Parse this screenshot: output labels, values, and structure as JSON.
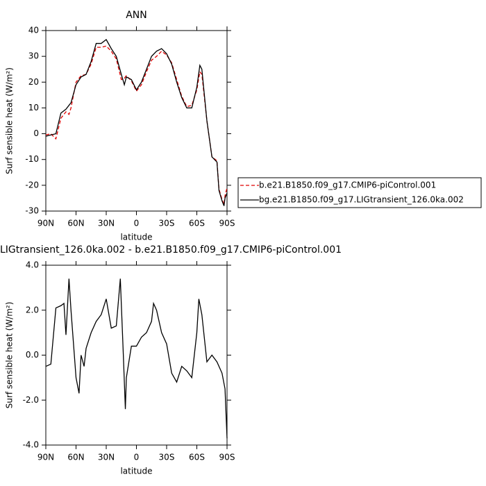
{
  "chart_data": [
    {
      "type": "line",
      "title": "ANN",
      "x_label": "latitude",
      "y_label": "Surf sensible heat (W/m²)",
      "x": [
        90,
        85,
        80,
        75,
        70,
        67,
        65,
        60,
        55,
        50,
        45,
        40,
        35,
        30,
        25,
        20,
        15,
        12,
        10,
        5,
        0,
        -5,
        -10,
        -15,
        -20,
        -25,
        -30,
        -35,
        -40,
        -45,
        -50,
        -55,
        -60,
        -63,
        -65,
        -70,
        -75,
        -80,
        -82,
        -85,
        -87,
        -88,
        -90
      ],
      "series": [
        {
          "name": "b.e21.B1850.f09_g17.CMIP6-piControl.001",
          "color": "#e00000",
          "line_style": "dashed",
          "values": [
            -0.5,
            0,
            -2,
            6,
            8.5,
            7.5,
            10,
            20,
            22.5,
            23,
            27,
            33.5,
            33.5,
            34,
            32,
            29,
            21,
            21.5,
            22.5,
            20.5,
            16.5,
            19,
            24,
            28.5,
            30,
            32,
            30.5,
            27.5,
            21,
            14.5,
            10.5,
            11,
            17,
            24,
            23,
            5,
            -9,
            -10.5,
            -21.5,
            -25.5,
            -27.5,
            -24,
            -21
          ]
        },
        {
          "name": "bg.e21.B1850.f09_g17.LIGtransient_126.0ka.002",
          "color": "#000000",
          "line_style": "solid",
          "values": [
            -1,
            -0.5,
            0,
            8,
            9.5,
            11,
            12,
            19,
            22,
            23,
            28,
            35,
            35,
            36.5,
            33,
            30,
            23,
            19,
            22,
            21,
            17,
            20,
            25,
            30,
            32,
            33,
            31,
            27,
            20,
            14,
            10,
            10,
            18,
            26.5,
            25,
            5,
            -9,
            -11,
            -22,
            -26,
            -28,
            -25,
            -23
          ]
        }
      ],
      "xlim": [
        90,
        -90
      ],
      "xticks": [
        {
          "value": 90,
          "label": "90N"
        },
        {
          "value": 60,
          "label": "60N"
        },
        {
          "value": 30,
          "label": "30N"
        },
        0,
        {
          "value": -30,
          "label": "30S"
        },
        {
          "value": -60,
          "label": "60S"
        },
        {
          "value": -90,
          "label": "90S"
        }
      ],
      "ylim": [
        -30,
        40
      ],
      "yticks": [
        -30,
        -20,
        -10,
        0,
        10,
        20,
        30,
        40
      ],
      "legend": "right"
    },
    {
      "type": "line",
      "title": "LIGtransient_126.0ka.002 - b.e21.B1850.f09_g17.CMIP6-piControl.001",
      "x_label": "latitude",
      "y_label": "Surf sensible heat (W/m²)",
      "x": [
        90,
        85,
        80,
        75,
        72,
        70,
        67,
        65,
        60,
        57,
        55,
        52,
        50,
        45,
        40,
        35,
        30,
        25,
        20,
        16,
        13,
        11,
        10,
        5,
        0,
        -5,
        -10,
        -15,
        -17,
        -20,
        -25,
        -30,
        -35,
        -40,
        -45,
        -50,
        -55,
        -60,
        -62,
        -65,
        -70,
        -75,
        -80,
        -85,
        -88,
        -90
      ],
      "values": [
        -0.5,
        -0.4,
        2.1,
        2.2,
        2.3,
        0.9,
        3.4,
        2.0,
        -1.0,
        -1.7,
        0,
        -0.5,
        0.3,
        1.0,
        1.5,
        1.8,
        2.5,
        1.2,
        1.3,
        3.4,
        0,
        -2.4,
        -1.0,
        0.4,
        0.4,
        0.8,
        1.0,
        1.5,
        2.3,
        2.0,
        1.0,
        0.5,
        -0.8,
        -1.2,
        -0.5,
        -0.7,
        -1.0,
        1.0,
        2.5,
        1.8,
        -0.3,
        0,
        -0.3,
        -0.8,
        -1.5,
        -3.7
      ],
      "color": "#000000",
      "xlim": [
        90,
        -90
      ],
      "xticks": [
        {
          "value": 90,
          "label": "90N"
        },
        {
          "value": 60,
          "label": "60N"
        },
        {
          "value": 30,
          "label": "30N"
        },
        0,
        {
          "value": -30,
          "label": "30S"
        },
        {
          "value": -60,
          "label": "60S"
        },
        {
          "value": -90,
          "label": "90S"
        }
      ],
      "ylim": [
        -4,
        4
      ],
      "yticks": [
        {
          "value": -4,
          "label": "-4.0"
        },
        {
          "value": -2,
          "label": "-2.0"
        },
        {
          "value": 0,
          "label": "0.0"
        },
        {
          "value": 2,
          "label": "2.0"
        },
        {
          "value": 4,
          "label": "4.0"
        }
      ]
    }
  ]
}
